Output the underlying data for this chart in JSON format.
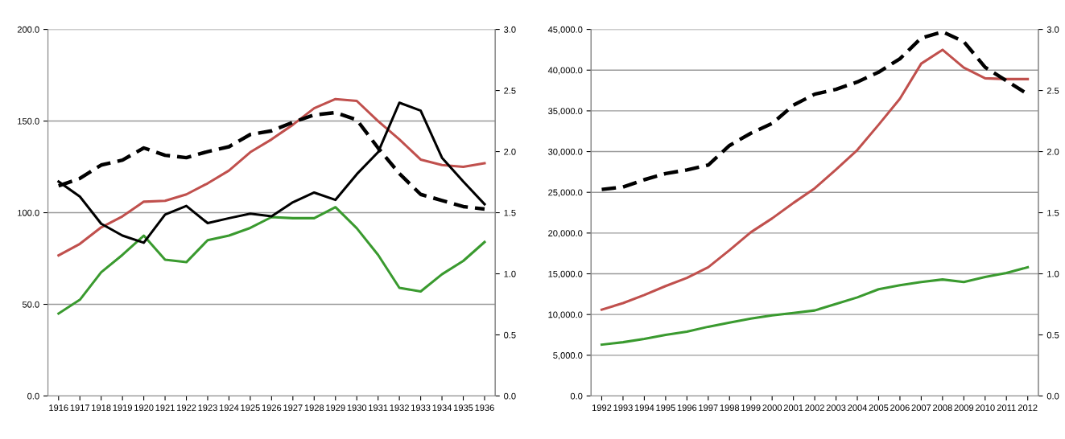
{
  "chart_data": [
    {
      "type": "line",
      "categories": [
        "1916",
        "1917",
        "1918",
        "1919",
        "1920",
        "1921",
        "1922",
        "1923",
        "1924",
        "1925",
        "1926",
        "1927",
        "1928",
        "1929",
        "1930",
        "1931",
        "1932",
        "1933",
        "1934",
        "1935",
        "1936"
      ],
      "series": [
        {
          "color": "#c0504d",
          "values": [
            76.7,
            83,
            92,
            98,
            106,
            106.5,
            110,
            116,
            123,
            133,
            140,
            148,
            157,
            162,
            161,
            150,
            140,
            129,
            126,
            125,
            127
          ]
        },
        {
          "color": "#3a9a2f",
          "values": [
            45,
            52.5,
            67.5,
            77,
            87.5,
            74.4,
            73,
            85,
            87.5,
            91.7,
            97.6,
            97,
            97,
            103,
            91.5,
            77,
            59,
            57,
            66.4,
            73.7,
            84
          ]
        },
        {
          "color": "#000000",
          "values": [
            117,
            108.8,
            94,
            87.5,
            83.6,
            99,
            103.7,
            94.3,
            97,
            99.5,
            98,
            105.7,
            111,
            107,
            121,
            133,
            160,
            155.7,
            130,
            117,
            104.6
          ]
        },
        {
          "color": "#000000",
          "axis": "y2",
          "line_style": "dashed",
          "values": [
            1.72,
            1.78,
            1.89,
            1.93,
            2.03,
            1.97,
            1.95,
            2.0,
            2.04,
            2.14,
            2.17,
            2.24,
            2.3,
            2.32,
            2.26,
            2.03,
            1.82,
            1.65,
            1.6,
            1.55,
            1.53
          ]
        }
      ],
      "ylim": [
        0,
        200
      ],
      "yticks": [
        {
          "value": 0,
          "label": "0.0"
        },
        {
          "value": 50,
          "label": "50.0"
        },
        {
          "value": 100,
          "label": "100.0"
        },
        {
          "value": 150,
          "label": "150.0"
        },
        {
          "value": 200,
          "label": "200.0"
        }
      ],
      "y2lim": [
        0,
        3
      ],
      "y2ticks": [
        {
          "value": 0,
          "label": "0.0"
        },
        {
          "value": 0.5,
          "label": "0.5"
        },
        {
          "value": 1,
          "label": "1.0"
        },
        {
          "value": 1.5,
          "label": "1.5"
        },
        {
          "value": 2,
          "label": "2.0"
        },
        {
          "value": 2.5,
          "label": "2.5"
        },
        {
          "value": 3,
          "label": "3.0"
        }
      ],
      "grid": "y",
      "marker": "none",
      "line_style": "solid"
    },
    {
      "type": "line",
      "categories": [
        "1992",
        "1993",
        "1994",
        "1995",
        "1996",
        "1997",
        "1998",
        "1999",
        "2000",
        "2001",
        "2002",
        "2003",
        "2004",
        "2005",
        "2006",
        "2007",
        "2008",
        "2009",
        "2010",
        "2011",
        "2012"
      ],
      "series": [
        {
          "color": "#c0504d",
          "values": [
            10600,
            11400,
            12400,
            13500,
            14500,
            15800,
            17900,
            20100,
            21800,
            23700,
            25500,
            27800,
            30200,
            33300,
            36500,
            40800,
            42500,
            40300,
            39000,
            38900,
            38900
          ]
        },
        {
          "color": "#3a9a2f",
          "values": [
            6300,
            6600,
            7000,
            7500,
            7900,
            8500,
            9000,
            9500,
            9900,
            10200,
            10500,
            11300,
            12100,
            13100,
            13600,
            14000,
            14300,
            14000,
            14600,
            15100,
            15800
          ]
        },
        {
          "color": "#000000",
          "axis": "y2",
          "line_style": "dashed",
          "values": [
            1.69,
            1.71,
            1.77,
            1.82,
            1.85,
            1.89,
            2.05,
            2.15,
            2.23,
            2.38,
            2.47,
            2.51,
            2.57,
            2.65,
            2.76,
            2.93,
            2.98,
            2.9,
            2.69,
            2.58,
            2.47
          ]
        }
      ],
      "ylim": [
        0,
        45000
      ],
      "yticks": [
        {
          "value": 0,
          "label": "0.0"
        },
        {
          "value": 5000,
          "label": "5,000.0"
        },
        {
          "value": 10000,
          "label": "10,000.0"
        },
        {
          "value": 15000,
          "label": "15,000.0"
        },
        {
          "value": 20000,
          "label": "20,000.0"
        },
        {
          "value": 25000,
          "label": "25,000.0"
        },
        {
          "value": 30000,
          "label": "30,000.0"
        },
        {
          "value": 35000,
          "label": "35,000.0"
        },
        {
          "value": 40000,
          "label": "40,000.0"
        },
        {
          "value": 45000,
          "label": "45,000.0"
        }
      ],
      "y2lim": [
        0,
        3
      ],
      "y2ticks": [
        {
          "value": 0,
          "label": "0.0"
        },
        {
          "value": 0.5,
          "label": "0.5"
        },
        {
          "value": 1,
          "label": "1.0"
        },
        {
          "value": 1.5,
          "label": "1.5"
        },
        {
          "value": 2,
          "label": "2.0"
        },
        {
          "value": 2.5,
          "label": "2.5"
        },
        {
          "value": 3,
          "label": "3.0"
        }
      ],
      "grid": "y",
      "marker": "none",
      "line_style": "solid"
    }
  ]
}
